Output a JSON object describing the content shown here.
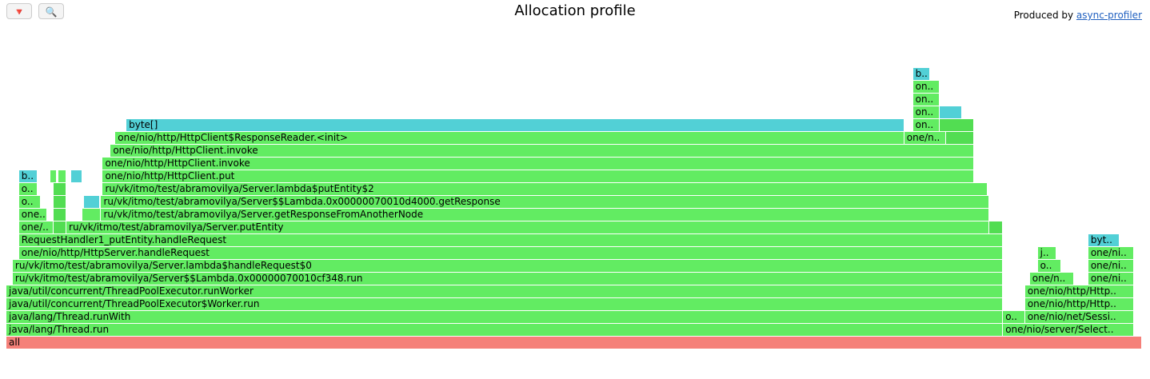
{
  "toolbar": {
    "reverse_icon": "🔻",
    "search_icon": "🔍"
  },
  "title": "Allocation profile",
  "credit": {
    "prefix": "Produced by ",
    "link_text": "async-profiler"
  },
  "colors": {
    "root": "#f58079",
    "java": "#62ec62",
    "java_alt": "#52dd52",
    "alloc": "#52d0d6"
  },
  "frames": [
    {
      "label": "all",
      "start": 0,
      "end": 1438,
      "depth": 0,
      "type": "root"
    },
    {
      "label": "java/lang/Thread.run",
      "start": 0,
      "end": 1262,
      "depth": 1,
      "type": "java"
    },
    {
      "label": "java/lang/Thread.runWith",
      "start": 0,
      "end": 1262,
      "depth": 2,
      "type": "java"
    },
    {
      "label": "java/util/concurrent/ThreadPoolExecutor$Worker.run",
      "start": 0,
      "end": 1262,
      "depth": 3,
      "type": "java"
    },
    {
      "label": "java/util/concurrent/ThreadPoolExecutor.runWorker",
      "start": 0,
      "end": 1262,
      "depth": 4,
      "type": "java"
    },
    {
      "label": "ru/vk/itmo/test/abramovilya/Server$$Lambda.0x00000070010cf348.run",
      "start": 8,
      "end": 1262,
      "depth": 5,
      "type": "java"
    },
    {
      "label": "ru/vk/itmo/test/abramovilya/Server.lambda$handleRequest$0",
      "start": 8,
      "end": 1262,
      "depth": 6,
      "type": "java"
    },
    {
      "label": "one/nio/http/HttpServer.handleRequest",
      "start": 16,
      "end": 1262,
      "depth": 7,
      "type": "java"
    },
    {
      "label": "RequestHandler1_putEntity.handleRequest",
      "start": 16,
      "end": 1262,
      "depth": 8,
      "type": "java"
    },
    {
      "label": "one/..",
      "start": 16,
      "end": 60,
      "depth": 9,
      "type": "java"
    },
    {
      "label": "",
      "start": 60,
      "end": 76,
      "depth": 9,
      "type": "java_alt"
    },
    {
      "label": "ru/vk/itmo/test/abramovilya/Server.putEntity",
      "start": 76,
      "end": 1245,
      "depth": 9,
      "type": "java"
    },
    {
      "label": "",
      "start": 1245,
      "end": 1262,
      "depth": 9,
      "type": "java_alt"
    },
    {
      "label": "one..",
      "start": 16,
      "end": 52,
      "depth": 10,
      "type": "java"
    },
    {
      "label": "",
      "start": 60,
      "end": 76,
      "depth": 10,
      "type": "java_alt"
    },
    {
      "label": "",
      "start": 96,
      "end": 120,
      "depth": 10,
      "type": "java"
    },
    {
      "label": "ru/vk/itmo/test/abramovilya/Server.getResponseFromAnotherNode",
      "start": 120,
      "end": 1245,
      "depth": 10,
      "type": "java"
    },
    {
      "label": "o..",
      "start": 16,
      "end": 44,
      "depth": 11,
      "type": "java"
    },
    {
      "label": "",
      "start": 60,
      "end": 76,
      "depth": 11,
      "type": "java_alt"
    },
    {
      "label": "",
      "start": 98,
      "end": 118,
      "depth": 11,
      "type": "alloc"
    },
    {
      "label": "ru/vk/itmo/test/abramovilya/Server$$Lambda.0x00000070010d4000.getResponse",
      "start": 120,
      "end": 1245,
      "depth": 11,
      "type": "java"
    },
    {
      "label": "o..",
      "start": 16,
      "end": 40,
      "depth": 12,
      "type": "java"
    },
    {
      "label": "",
      "start": 60,
      "end": 76,
      "depth": 12,
      "type": "java_alt"
    },
    {
      "label": "ru/vk/itmo/test/abramovilya/Server.lambda$putEntity$2",
      "start": 122,
      "end": 1243,
      "depth": 12,
      "type": "java"
    },
    {
      "label": "b..",
      "start": 16,
      "end": 40,
      "depth": 13,
      "type": "alloc"
    },
    {
      "label": "",
      "start": 56,
      "end": 64,
      "depth": 13,
      "type": "java"
    },
    {
      "label": "",
      "start": 66,
      "end": 76,
      "depth": 13,
      "type": "java"
    },
    {
      "label": "",
      "start": 82,
      "end": 96,
      "depth": 13,
      "type": "alloc"
    },
    {
      "label": "one/nio/http/HttpClient.put",
      "start": 122,
      "end": 1225,
      "depth": 13,
      "type": "java"
    },
    {
      "label": "one/nio/http/HttpClient.invoke",
      "start": 122,
      "end": 1225,
      "depth": 14,
      "type": "java"
    },
    {
      "label": "one/nio/http/HttpClient.invoke",
      "start": 132,
      "end": 1225,
      "depth": 15,
      "type": "java"
    },
    {
      "label": "one/nio/http/HttpClient$ResponseReader.<init>",
      "start": 138,
      "end": 1137,
      "depth": 16,
      "type": "java"
    },
    {
      "label": "one/n..",
      "start": 1137,
      "end": 1190,
      "depth": 16,
      "type": "java"
    },
    {
      "label": "",
      "start": 1190,
      "end": 1225,
      "depth": 16,
      "type": "java_alt"
    },
    {
      "label": "byte[]",
      "start": 152,
      "end": 1137,
      "depth": 17,
      "type": "alloc"
    },
    {
      "label": "on..",
      "start": 1148,
      "end": 1182,
      "depth": 17,
      "type": "java"
    },
    {
      "label": "",
      "start": 1182,
      "end": 1225,
      "depth": 17,
      "type": "java_alt"
    },
    {
      "label": "on..",
      "start": 1148,
      "end": 1182,
      "depth": 18,
      "type": "java"
    },
    {
      "label": "",
      "start": 1182,
      "end": 1210,
      "depth": 18,
      "type": "alloc"
    },
    {
      "label": "on..",
      "start": 1148,
      "end": 1182,
      "depth": 19,
      "type": "java"
    },
    {
      "label": "on..",
      "start": 1148,
      "end": 1182,
      "depth": 20,
      "type": "java"
    },
    {
      "label": "b..",
      "start": 1148,
      "end": 1170,
      "depth": 21,
      "type": "alloc"
    },
    {
      "label": "",
      "start": 1128,
      "end": 1434,
      "depth": 1,
      "type": "java"
    },
    {
      "label": "o..",
      "start": 1262,
      "end": 1290,
      "depth": 2,
      "type": "java"
    },
    {
      "label": "one/nio/net/Sessi..",
      "start": 1290,
      "end": 1428,
      "depth": 2,
      "type": "java"
    },
    {
      "label": "one/nio/server/Select..",
      "start": 1262,
      "end": 1428,
      "depth": 1,
      "type": "java"
    },
    {
      "label": "one/nio/http/Http..",
      "start": 1290,
      "end": 1428,
      "depth": 3,
      "type": "java"
    },
    {
      "label": "one/nio/http/Http..",
      "start": 1290,
      "end": 1428,
      "depth": 4,
      "type": "java"
    },
    {
      "label": "one/n..",
      "start": 1296,
      "end": 1352,
      "depth": 5,
      "type": "java"
    },
    {
      "label": "one/ni..",
      "start": 1370,
      "end": 1428,
      "depth": 5,
      "type": "java"
    },
    {
      "label": "o..",
      "start": 1306,
      "end": 1336,
      "depth": 6,
      "type": "java"
    },
    {
      "label": "one/ni..",
      "start": 1370,
      "end": 1428,
      "depth": 6,
      "type": "java"
    },
    {
      "label": "j..",
      "start": 1306,
      "end": 1330,
      "depth": 7,
      "type": "java"
    },
    {
      "label": "one/ni..",
      "start": 1370,
      "end": 1428,
      "depth": 7,
      "type": "java"
    },
    {
      "label": "byt..",
      "start": 1370,
      "end": 1410,
      "depth": 8,
      "type": "alloc"
    }
  ]
}
